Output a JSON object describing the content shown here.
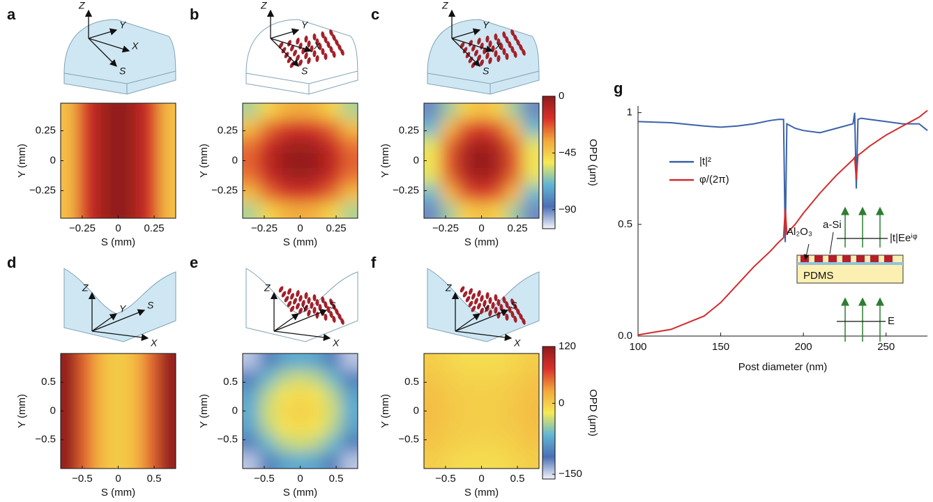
{
  "chart_data": [
    {
      "type": "heatmap",
      "panel": "a",
      "illustration_labels": [
        "Z",
        "Y",
        "X",
        "S"
      ],
      "xlabel": "S (mm)",
      "ylabel": "Y (mm)",
      "xlim": [
        -0.4,
        0.4
      ],
      "ylim": [
        -0.48,
        0.48
      ],
      "xticks": [
        {
          "value": -0.25,
          "label": "−0.25"
        },
        0,
        0.25
      ],
      "yticks": [
        {
          "value": -0.25,
          "label": "−0.25"
        },
        0,
        0.25
      ],
      "zlim": [
        -105,
        0
      ],
      "colormap": [
        "#f4f4fb",
        "#4a6fb5",
        "#62b6d4",
        "#f5ea55",
        "#f3a73b",
        "#d9302a",
        "#8e1b1b"
      ],
      "z": [
        [
          -41,
          -18,
          -5,
          0,
          -5,
          -18,
          -41
        ],
        [
          -41,
          -18,
          -5,
          0,
          -5,
          -18,
          -41
        ],
        [
          -41,
          -18,
          -5,
          0,
          -5,
          -18,
          -41
        ],
        [
          -41,
          -18,
          -5,
          0,
          -5,
          -18,
          -41
        ],
        [
          -41,
          -18,
          -5,
          0,
          -5,
          -18,
          -41
        ],
        [
          -41,
          -18,
          -5,
          0,
          -5,
          -18,
          -41
        ],
        [
          -41,
          -18,
          -5,
          0,
          -5,
          -18,
          -41
        ]
      ]
    },
    {
      "type": "heatmap",
      "panel": "b",
      "illustration_labels": [
        "Z",
        "Y",
        "X",
        "S"
      ],
      "xlabel": "S (mm)",
      "ylabel": "Y (mm)",
      "xlim": [
        -0.4,
        0.4
      ],
      "ylim": [
        -0.48,
        0.48
      ],
      "xticks": [
        {
          "value": -0.25,
          "label": "−0.25"
        },
        0,
        0.25
      ],
      "yticks": [
        {
          "value": -0.25,
          "label": "−0.25"
        },
        0,
        0.25
      ],
      "zlim": [
        -105,
        0
      ],
      "colormap": [
        "#f4f4fb",
        "#4a6fb5",
        "#62b6d4",
        "#f5ea55",
        "#f3a73b",
        "#d9302a",
        "#8e1b1b"
      ],
      "z": [
        [
          -61,
          -47,
          -39,
          -36,
          -39,
          -47,
          -61
        ],
        [
          -41,
          -27,
          -19,
          -16,
          -19,
          -27,
          -41
        ],
        [
          -28,
          -15,
          -7,
          -4,
          -7,
          -15,
          -28
        ],
        [
          -24,
          -11,
          -3,
          0,
          -3,
          -11,
          -24
        ],
        [
          -28,
          -15,
          -7,
          -4,
          -7,
          -15,
          -28
        ],
        [
          -41,
          -27,
          -19,
          -16,
          -19,
          -27,
          -41
        ],
        [
          -61,
          -47,
          -39,
          -36,
          -39,
          -47,
          -61
        ]
      ]
    },
    {
      "type": "heatmap",
      "panel": "c",
      "illustration_labels": [
        "Z",
        "Y",
        "X",
        "S"
      ],
      "xlabel": "S (mm)",
      "ylabel": "Y (mm)",
      "xlim": [
        -0.4,
        0.4
      ],
      "ylim": [
        -0.48,
        0.48
      ],
      "xticks": [
        {
          "value": -0.25,
          "label": "−0.25"
        },
        0,
        0.25
      ],
      "yticks": [
        {
          "value": -0.25,
          "label": "−0.25"
        },
        0,
        0.25
      ],
      "zlim": [
        -105,
        0
      ],
      "colormap": [
        "#f4f4fb",
        "#4a6fb5",
        "#62b6d4",
        "#f5ea55",
        "#f3a73b",
        "#d9302a",
        "#8e1b1b"
      ],
      "colorbar": {
        "label": "OPD (μm)",
        "ticks": [
          0,
          {
            "value": -45,
            "label": "−45"
          },
          {
            "value": -90,
            "label": "−90"
          }
        ]
      },
      "z": [
        [
          -91,
          -63,
          -46,
          -41,
          -46,
          -63,
          -91
        ],
        [
          -69,
          -41,
          -24,
          -18,
          -24,
          -41,
          -69
        ],
        [
          -55,
          -27,
          -10,
          -5,
          -10,
          -27,
          -55
        ],
        [
          -51,
          -23,
          -6,
          0,
          -6,
          -23,
          -51
        ],
        [
          -55,
          -27,
          -10,
          -5,
          -10,
          -27,
          -55
        ],
        [
          -69,
          -41,
          -24,
          -18,
          -24,
          -41,
          -69
        ],
        [
          -91,
          -63,
          -46,
          -41,
          -46,
          -63,
          -91
        ]
      ]
    },
    {
      "type": "heatmap",
      "panel": "d",
      "illustration_labels": [
        "Z",
        "Y",
        "S",
        "X"
      ],
      "xlabel": "S (mm)",
      "ylabel": "Y (mm)",
      "xlim": [
        -0.8,
        0.8
      ],
      "ylim": [
        -1,
        1
      ],
      "xticks": [
        {
          "value": -0.5,
          "label": "−0.5"
        },
        0,
        0.5
      ],
      "yticks": [
        {
          "value": -0.5,
          "label": "−0.5"
        },
        0,
        0.5
      ],
      "zlim": [
        -160,
        120
      ],
      "colormap": [
        "#f4f4fb",
        "#4a6fb5",
        "#62b6d4",
        "#f5ea55",
        "#f3a73b",
        "#d9302a",
        "#8e1b1b"
      ],
      "z": [
        [
          117,
          52,
          13,
          0,
          13,
          52,
          117
        ],
        [
          117,
          52,
          13,
          0,
          13,
          52,
          117
        ],
        [
          117,
          52,
          13,
          0,
          13,
          52,
          117
        ],
        [
          117,
          52,
          13,
          0,
          13,
          52,
          117
        ],
        [
          117,
          52,
          13,
          0,
          13,
          52,
          117
        ],
        [
          117,
          52,
          13,
          0,
          13,
          52,
          117
        ],
        [
          117,
          52,
          13,
          0,
          13,
          52,
          117
        ]
      ]
    },
    {
      "type": "heatmap",
      "panel": "e",
      "illustration_labels": [
        "Z",
        "Y",
        "S",
        "X"
      ],
      "xlabel": "S (mm)",
      "ylabel": "Y (mm)",
      "xlim": [
        -0.8,
        0.8
      ],
      "ylim": [
        -1,
        1
      ],
      "xticks": [
        {
          "value": -0.5,
          "label": "−0.5"
        },
        0,
        0.5
      ],
      "yticks": [
        {
          "value": -0.5,
          "label": "−0.5"
        },
        0,
        0.5
      ],
      "zlim": [
        -160,
        120
      ],
      "colormap": [
        "#f4f4fb",
        "#4a6fb5",
        "#62b6d4",
        "#f5ea55",
        "#f3a73b",
        "#d9302a",
        "#8e1b1b"
      ],
      "z": [
        [
          -144,
          -104,
          -80,
          -72,
          -80,
          -104,
          -144
        ],
        [
          -104,
          -64,
          -40,
          -32,
          -40,
          -64,
          -104
        ],
        [
          -80,
          -40,
          -16,
          -8,
          -16,
          -40,
          -80
        ],
        [
          -72,
          -32,
          -8,
          0,
          -8,
          -32,
          -72
        ],
        [
          -80,
          -40,
          -16,
          -8,
          -16,
          -40,
          -80
        ],
        [
          -104,
          -64,
          -40,
          -32,
          -40,
          -64,
          -104
        ],
        [
          -144,
          -104,
          -80,
          -72,
          -80,
          -104,
          -144
        ]
      ]
    },
    {
      "type": "heatmap",
      "panel": "f",
      "illustration_labels": [
        "Z",
        "Y",
        "S",
        "X"
      ],
      "xlabel": "S (mm)",
      "ylabel": "Y (mm)",
      "xlim": [
        -0.8,
        0.8
      ],
      "ylim": [
        -1,
        1
      ],
      "xticks": [
        {
          "value": -0.5,
          "label": "−0.5"
        },
        0,
        0.5
      ],
      "yticks": [
        {
          "value": -0.5,
          "label": "−0.5"
        },
        0,
        0.5
      ],
      "zlim": [
        -160,
        120
      ],
      "colormap": [
        "#f4f4fb",
        "#4a6fb5",
        "#62b6d4",
        "#f5ea55",
        "#f3a73b",
        "#d9302a",
        "#8e1b1b"
      ],
      "colorbar": {
        "label": "OPD (μm)",
        "ticks": [
          120,
          0,
          {
            "value": -150,
            "label": "−150"
          }
        ]
      },
      "z": [
        [
          0,
          -6,
          -10,
          -11,
          -10,
          -6,
          0
        ],
        [
          6,
          0,
          -4,
          -5,
          -4,
          0,
          6
        ],
        [
          10,
          4,
          0,
          -1,
          0,
          4,
          10
        ],
        [
          11,
          5,
          1,
          0,
          1,
          5,
          11
        ],
        [
          10,
          4,
          0,
          -1,
          0,
          4,
          10
        ],
        [
          6,
          0,
          -4,
          -5,
          -4,
          0,
          6
        ],
        [
          0,
          -6,
          -10,
          -11,
          -10,
          -6,
          0
        ]
      ]
    },
    {
      "type": "line",
      "panel": "g",
      "xlabel": "Post diameter (nm)",
      "legend": "center-left",
      "xlim": [
        100,
        275
      ],
      "ylim": [
        0,
        1.03
      ],
      "xticks": [
        100,
        150,
        200,
        250
      ],
      "yticks": [
        {
          "value": 0,
          "label": "0.0"
        },
        0.5,
        1
      ],
      "x": [
        100,
        120,
        140,
        150,
        160,
        170,
        180,
        185,
        188,
        189,
        190,
        195,
        200,
        210,
        220,
        230,
        231,
        232,
        233,
        235,
        240,
        250,
        260,
        270,
        275
      ],
      "series": [
        {
          "name": "|t|²",
          "color": "#3a62a8",
          "values": [
            0.96,
            0.955,
            0.94,
            0.935,
            0.94,
            0.95,
            0.965,
            0.97,
            0.97,
            0.42,
            0.95,
            0.93,
            0.92,
            0.91,
            0.93,
            0.95,
            1.0,
            0.66,
            0.97,
            0.975,
            0.97,
            0.96,
            0.95,
            0.95,
            0.92
          ]
        },
        {
          "name": "φ/(2π)",
          "color": "#d22c2c",
          "values": [
            0.005,
            0.03,
            0.09,
            0.15,
            0.23,
            0.31,
            0.38,
            0.42,
            0.44,
            0.57,
            0.46,
            0.5,
            0.55,
            0.64,
            0.72,
            0.79,
            0.8,
            0.7,
            0.81,
            0.82,
            0.85,
            0.9,
            0.94,
            0.98,
            1.01
          ]
        }
      ],
      "inset": {
        "labels": [
          "Al₂O₃",
          "a-Si",
          "|t|Eeⁱᵠ",
          "PDMS",
          "E"
        ]
      }
    }
  ]
}
